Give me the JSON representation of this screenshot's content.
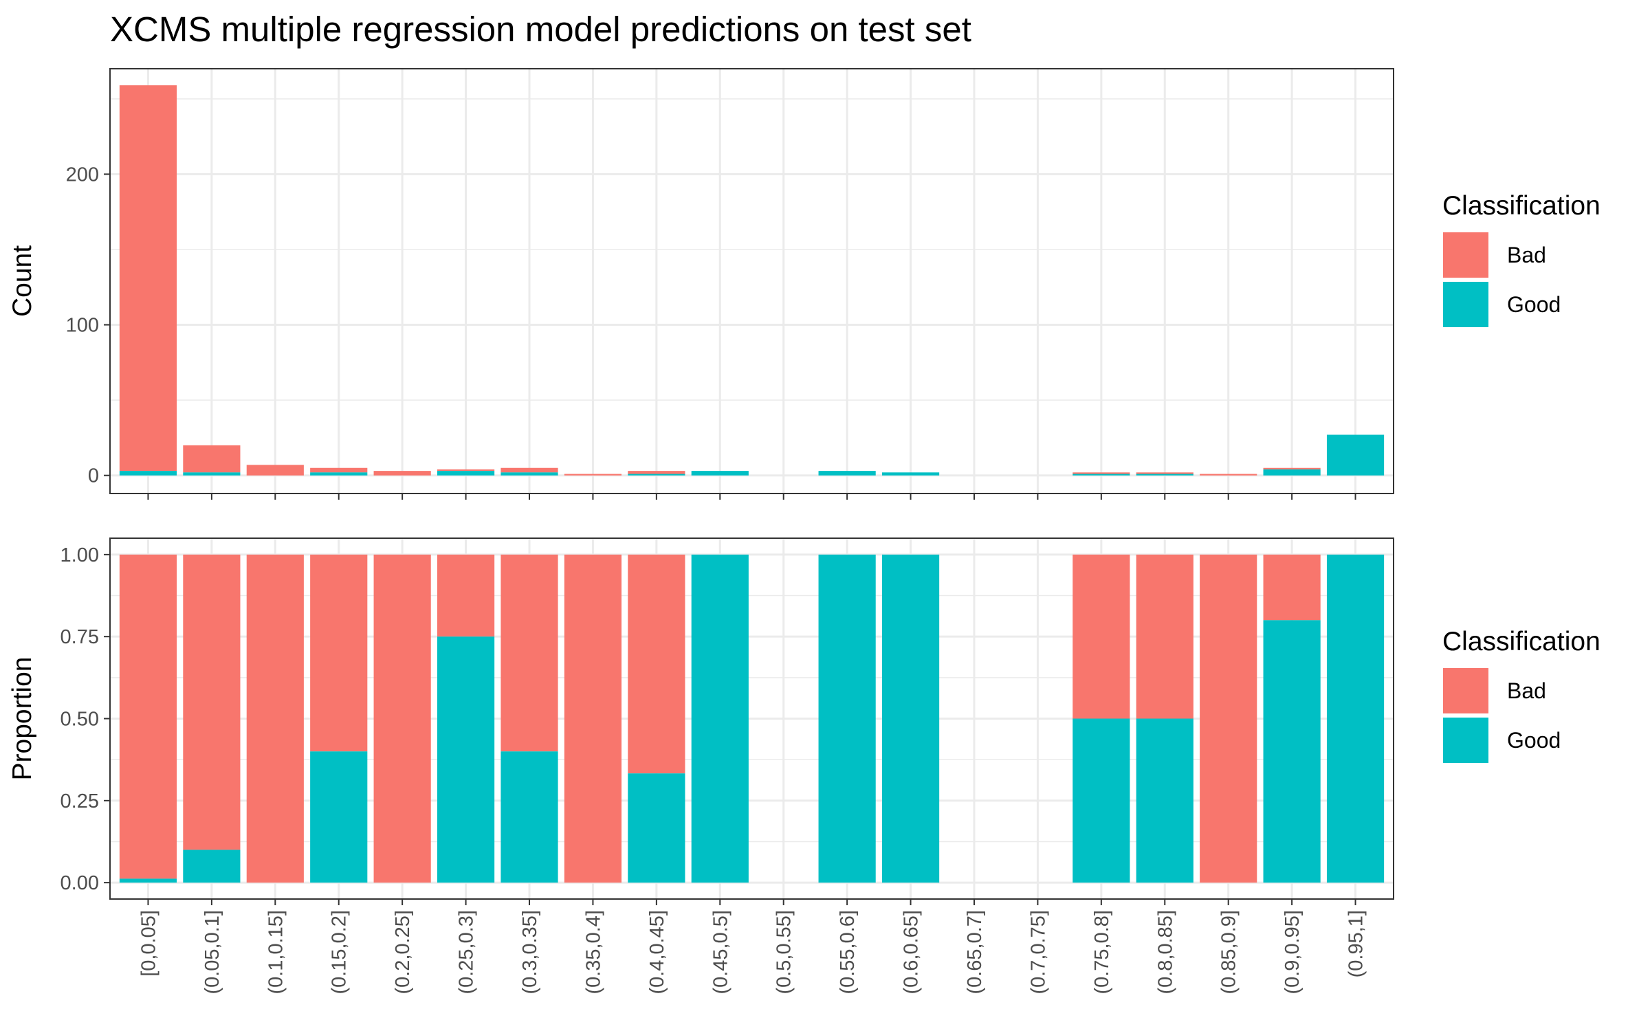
{
  "title": "XCMS multiple regression model predictions on test set",
  "colors": {
    "Bad": "#F8766D",
    "Good": "#00BFC4"
  },
  "chart_data": [
    {
      "type": "bar",
      "stacked": true,
      "ylabel": "Count",
      "ylim": [
        -12,
        270
      ],
      "yticks": [
        0,
        100,
        200
      ],
      "ytick_labels": [
        "0",
        "100",
        "200"
      ],
      "grid": true,
      "legend": {
        "title": "Classification",
        "entries": [
          "Bad",
          "Good"
        ],
        "placement": "right"
      },
      "categories": [
        "[0,0.05]",
        "(0.05,0.1]",
        "(0.1,0.15]",
        "(0.15,0.2]",
        "(0.2,0.25]",
        "(0.25,0.3]",
        "(0.3,0.35]",
        "(0.35,0.4]",
        "(0.4,0.45]",
        "(0.45,0.5]",
        "(0.5,0.55]",
        "(0.55,0.6]",
        "(0.6,0.65]",
        "(0.65,0.7]",
        "(0.7,0.75]",
        "(0.75,0.8]",
        "(0.8,0.85]",
        "(0.85,0.9]",
        "(0.9,0.95]",
        "(0.95,1]"
      ],
      "series": [
        {
          "name": "Good",
          "values": [
            3,
            2,
            0,
            2,
            0,
            3,
            2,
            0,
            1,
            3,
            0,
            3,
            2,
            0,
            0,
            1,
            1,
            0,
            4,
            27
          ]
        },
        {
          "name": "Bad",
          "values": [
            256,
            18,
            7,
            3,
            3,
            1,
            3,
            1,
            2,
            0,
            0,
            0,
            0,
            0,
            0,
            1,
            1,
            1,
            1,
            0
          ]
        }
      ]
    },
    {
      "type": "bar",
      "stacked": true,
      "ylabel": "Proportion",
      "ylim": [
        -0.05,
        1.05
      ],
      "yticks": [
        0,
        0.25,
        0.5,
        0.75,
        1
      ],
      "ytick_labels": [
        "0.00",
        "0.25",
        "0.50",
        "0.75",
        "1.00"
      ],
      "grid": true,
      "legend": {
        "title": "Classification",
        "entries": [
          "Bad",
          "Good"
        ],
        "placement": "right"
      },
      "categories": [
        "[0,0.05]",
        "(0.05,0.1]",
        "(0.1,0.15]",
        "(0.15,0.2]",
        "(0.2,0.25]",
        "(0.25,0.3]",
        "(0.3,0.35]",
        "(0.35,0.4]",
        "(0.4,0.45]",
        "(0.45,0.5]",
        "(0.5,0.55]",
        "(0.55,0.6]",
        "(0.6,0.65]",
        "(0.65,0.7]",
        "(0.7,0.75]",
        "(0.75,0.8]",
        "(0.8,0.85]",
        "(0.85,0.9]",
        "(0.9,0.95]",
        "(0.95,1]"
      ],
      "series": [
        {
          "name": "Good",
          "values": [
            0.012,
            0.1,
            0,
            0.4,
            0,
            0.75,
            0.4,
            0,
            0.333,
            1,
            0,
            1,
            1,
            0,
            0,
            0.5,
            0.5,
            0,
            0.8,
            1
          ]
        },
        {
          "name": "Bad",
          "values": [
            0.988,
            0.9,
            1,
            0.6,
            1,
            0.25,
            0.6,
            1,
            0.667,
            0,
            0,
            0,
            0,
            0,
            0,
            0.5,
            0.5,
            1,
            0.2,
            0
          ]
        }
      ]
    }
  ]
}
